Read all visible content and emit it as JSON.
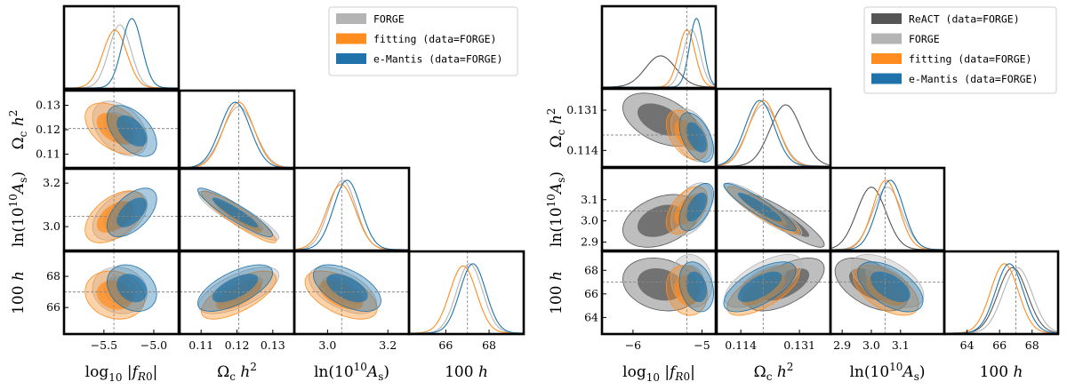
{
  "colors": {
    "react": "#555555",
    "forge": "#b4b4b4",
    "fitting": "#ff8c1f",
    "emantis": "#1f73aa",
    "truth_line": "#888888"
  },
  "chart_data": [
    {
      "type": "corner",
      "title": "",
      "parameters": [
        {
          "key": "logfr0",
          "label": "log10 |fR0|",
          "ticks": [
            -5.5,
            -5.0
          ],
          "tick_labels": [
            "−5.5",
            "−5.0"
          ],
          "range": [
            -5.9,
            -4.75
          ],
          "truth": -5.4
        },
        {
          "key": "omch2",
          "label": "Ωc h²",
          "ticks": [
            0.11,
            0.12,
            0.13
          ],
          "tick_labels": [
            "0.11",
            "0.12",
            "0.13"
          ],
          "range": [
            0.104,
            0.136
          ],
          "truth": 0.1205
        },
        {
          "key": "lnAs",
          "label": "ln(10¹⁰ As)",
          "ticks": [
            3.0,
            3.2
          ],
          "tick_labels": [
            "3.0",
            "3.2"
          ],
          "range": [
            2.89,
            3.27
          ],
          "truth": 3.047
        },
        {
          "key": "h100",
          "label": "100 h",
          "ticks": [
            66,
            68
          ],
          "tick_labels": [
            "66",
            "68"
          ],
          "range": [
            64.3,
            69.6
          ],
          "truth": 67.0
        }
      ],
      "series": [
        {
          "name": "FORGE",
          "color_key": "forge",
          "mean": [
            -5.34,
            0.1205,
            3.05,
            67.1
          ],
          "sigma": [
            0.11,
            0.0045,
            0.045,
            0.6
          ],
          "corr": {
            "1,0": -0.4,
            "2,0": 0.45,
            "2,1": -0.9,
            "3,0": -0.1,
            "3,1": 0.65,
            "3,2": -0.55
          }
        },
        {
          "name": "fitting (data=FORGE)",
          "color_key": "fitting",
          "mean": [
            -5.39,
            0.1205,
            3.045,
            66.8
          ],
          "sigma": [
            0.12,
            0.0042,
            0.048,
            0.62
          ],
          "corr": {
            "1,0": -0.45,
            "2,0": 0.5,
            "2,1": -0.92,
            "3,0": -0.15,
            "3,1": 0.68,
            "3,2": -0.55
          }
        },
        {
          "name": "e-Mantis (data=FORGE)",
          "color_key": "emantis",
          "mean": [
            -5.22,
            0.1195,
            3.065,
            67.25
          ],
          "sigma": [
            0.1,
            0.0042,
            0.045,
            0.6
          ],
          "corr": {
            "1,0": -0.5,
            "2,0": 0.55,
            "2,1": -0.92,
            "3,0": -0.25,
            "3,1": 0.65,
            "3,2": -0.55
          }
        }
      ],
      "legend": {
        "location": "top-right",
        "entries": [
          "FORGE",
          "fitting (data=FORGE)",
          "e-Mantis (data=FORGE)"
        ]
      }
    },
    {
      "type": "corner",
      "title": "",
      "parameters": [
        {
          "key": "logfr0",
          "label": "log10 |fR0|",
          "ticks": [
            -6,
            -5
          ],
          "tick_labels": [
            "−6",
            "−5"
          ],
          "range": [
            -6.45,
            -4.8
          ],
          "truth": -5.22
        },
        {
          "key": "omch2",
          "label": "Ωc h²",
          "ticks": [
            0.114,
            0.131
          ],
          "tick_labels": [
            "0.114",
            "0.131"
          ],
          "range": [
            0.107,
            0.14
          ],
          "truth": 0.1205
        },
        {
          "key": "lnAs",
          "label": "ln(10¹⁰ As)",
          "ticks": [
            2.9,
            3.0,
            3.1
          ],
          "tick_labels": [
            "2.9",
            "3.0",
            "3.1"
          ],
          "range": [
            2.86,
            3.25
          ],
          "truth": 3.047
        },
        {
          "key": "h100",
          "label": "100 h",
          "ticks": [
            64,
            66,
            68
          ],
          "tick_labels": [
            "64",
            "66",
            "68"
          ],
          "range": [
            62.6,
            69.6
          ],
          "truth": 67.0
        }
      ],
      "series": [
        {
          "name": "ReACT (data=FORGE)",
          "color_key": "react",
          "mean": [
            -5.6,
            0.127,
            3.0,
            66.8
          ],
          "sigma": [
            0.22,
            0.0045,
            0.05,
            0.9
          ],
          "corr": {
            "1,0": -0.45,
            "2,0": 0.35,
            "2,1": -0.9,
            "3,0": -0.2,
            "3,1": 0.6,
            "3,2": -0.5
          }
        },
        {
          "name": "FORGE",
          "color_key": "forge",
          "mean": [
            -5.15,
            0.1205,
            3.055,
            67.1
          ],
          "sigma": [
            0.12,
            0.0045,
            0.05,
            0.9
          ],
          "corr": {
            "1,0": -0.4,
            "2,0": 0.45,
            "2,1": -0.9,
            "3,0": -0.1,
            "3,1": 0.65,
            "3,2": -0.55
          }
        },
        {
          "name": "fitting (data=FORGE)",
          "color_key": "fitting",
          "mean": [
            -5.22,
            0.1205,
            3.05,
            66.3
          ],
          "sigma": [
            0.12,
            0.0042,
            0.045,
            0.85
          ],
          "corr": {
            "1,0": -0.45,
            "2,0": 0.5,
            "2,1": -0.92,
            "3,0": -0.15,
            "3,1": 0.68,
            "3,2": -0.55
          }
        },
        {
          "name": "e-Mantis (data=FORGE)",
          "color_key": "emantis",
          "mean": [
            -5.08,
            0.1195,
            3.065,
            66.6
          ],
          "sigma": [
            0.1,
            0.0042,
            0.045,
            0.85
          ],
          "corr": {
            "1,0": -0.5,
            "2,0": 0.55,
            "2,1": -0.92,
            "3,0": -0.25,
            "3,1": 0.65,
            "3,2": -0.55
          }
        }
      ],
      "legend": {
        "location": "top-right",
        "entries": [
          "ReACT (data=FORGE)",
          "FORGE",
          "fitting (data=FORGE)",
          "e-Mantis (data=FORGE)"
        ]
      }
    }
  ]
}
